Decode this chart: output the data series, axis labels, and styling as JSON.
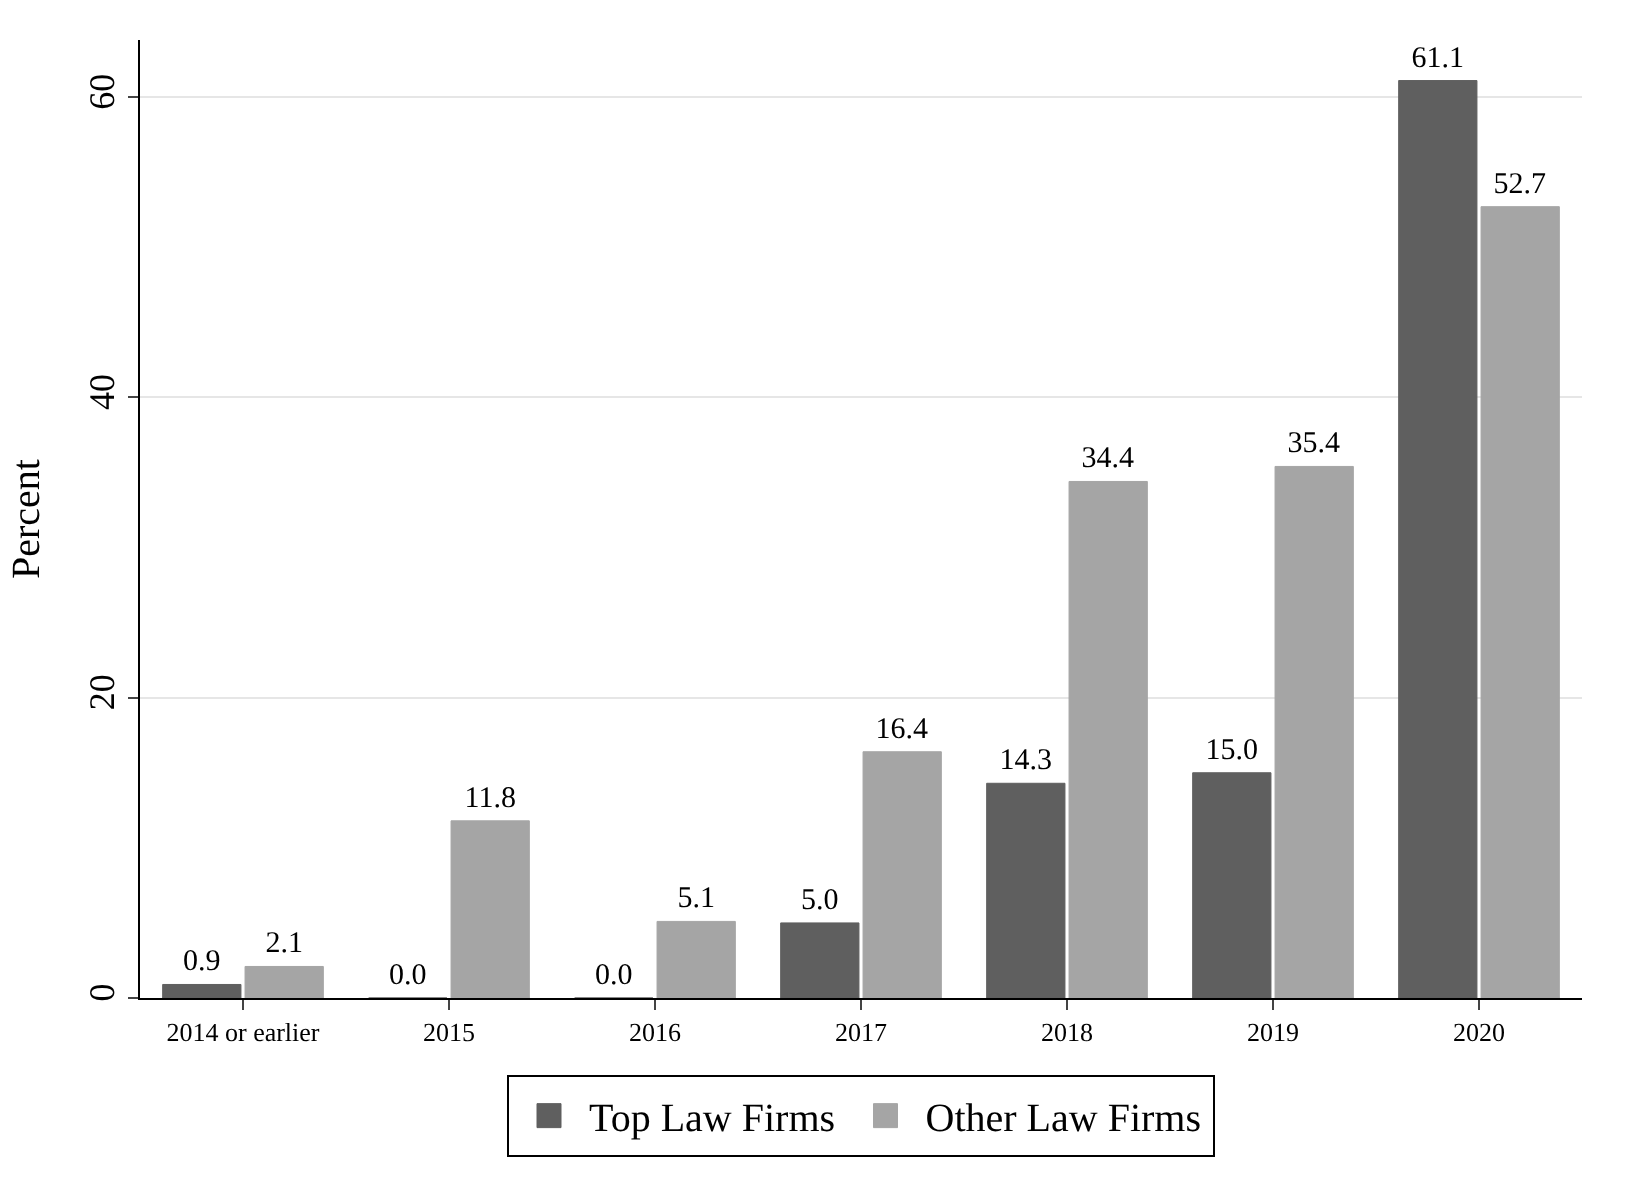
{
  "chart_data": {
    "type": "bar",
    "ylabel": "Percent",
    "categories": [
      "2014 or earlier",
      "2015",
      "2016",
      "2017",
      "2018",
      "2019",
      "2020"
    ],
    "series": [
      {
        "name": "Top Law Firms",
        "color": "#5f5f5f",
        "values": [
          0.9,
          0.0,
          0.0,
          5.0,
          14.3,
          15.0,
          61.1
        ]
      },
      {
        "name": "Other Law Firms",
        "color": "#a5a5a5",
        "values": [
          2.1,
          11.8,
          5.1,
          16.4,
          34.4,
          35.4,
          52.7
        ]
      }
    ],
    "value_labels": [
      [
        "0.9",
        "0.0",
        "0.0",
        "5.0",
        "14.3",
        "15.0",
        "61.1"
      ],
      [
        "2.1",
        "11.8",
        "5.1",
        "16.4",
        "34.4",
        "35.4",
        "52.7"
      ]
    ],
    "ylim": [
      0,
      63.8
    ],
    "yticks": [
      0,
      20,
      40,
      60
    ],
    "grid": "y",
    "legend": "bottom"
  }
}
